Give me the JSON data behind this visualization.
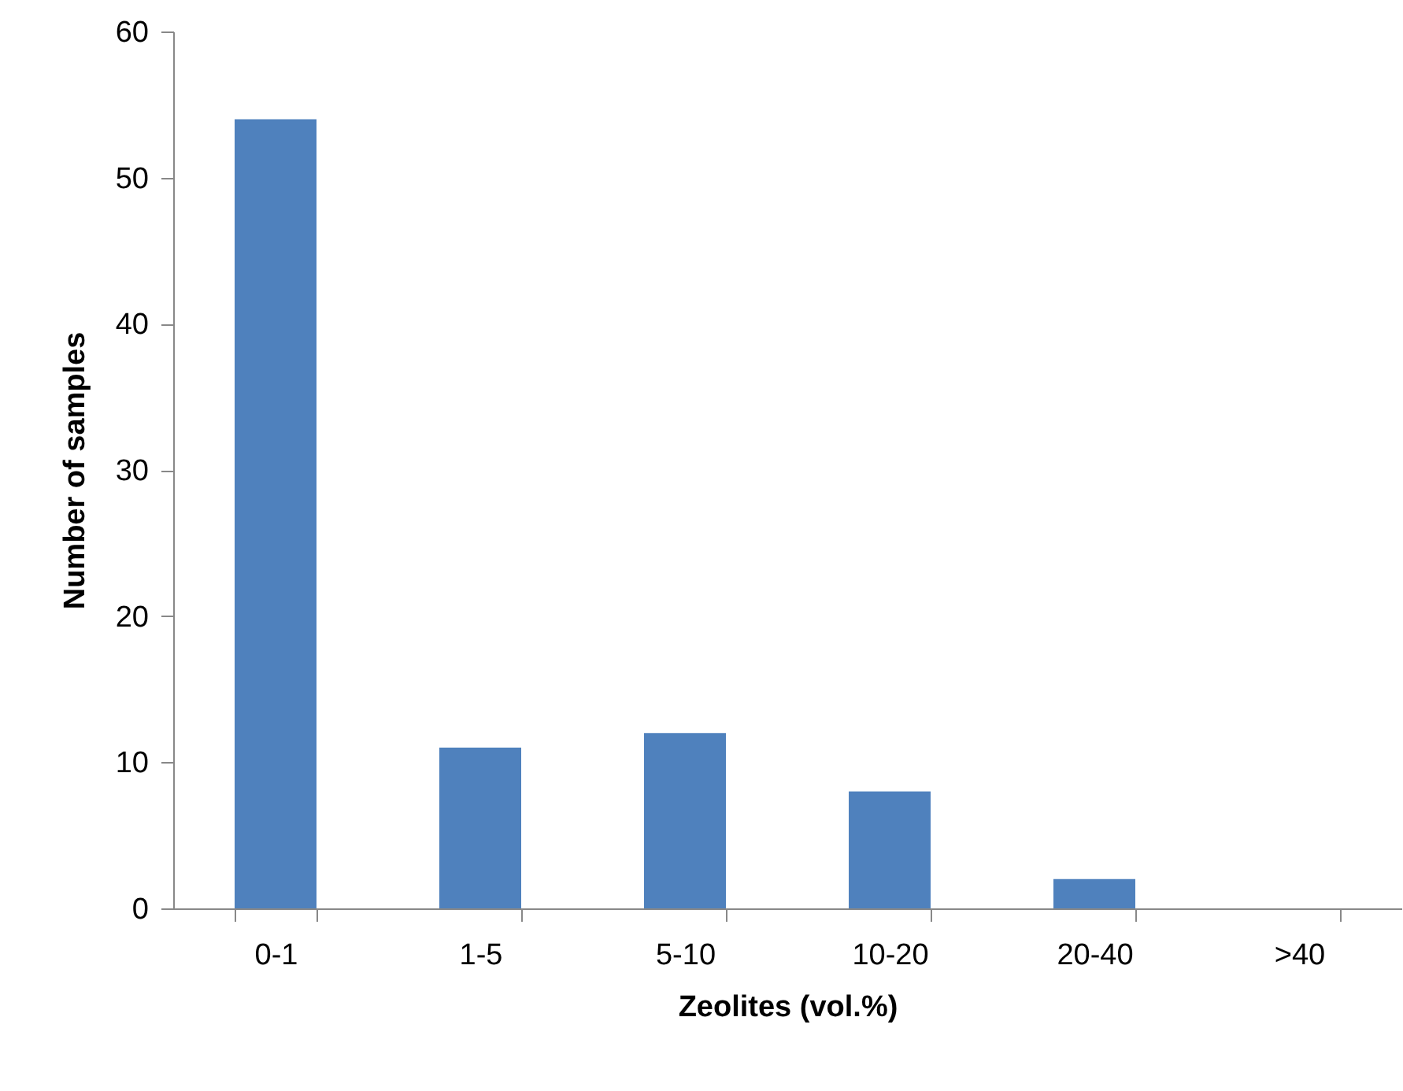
{
  "chart_data": {
    "type": "bar",
    "xlabel": "Zeolites (vol.%)",
    "ylabel": "Number of samples",
    "categories": [
      "0-1",
      "1-5",
      "5-10",
      "10-20",
      "20-40",
      ">40"
    ],
    "values": [
      54,
      11,
      12,
      8,
      2,
      0
    ],
    "color": "#4f81bd",
    "ylim": [
      0,
      60
    ],
    "yticks": [
      0,
      10,
      20,
      30,
      40,
      50,
      60
    ],
    "grid": false
  }
}
